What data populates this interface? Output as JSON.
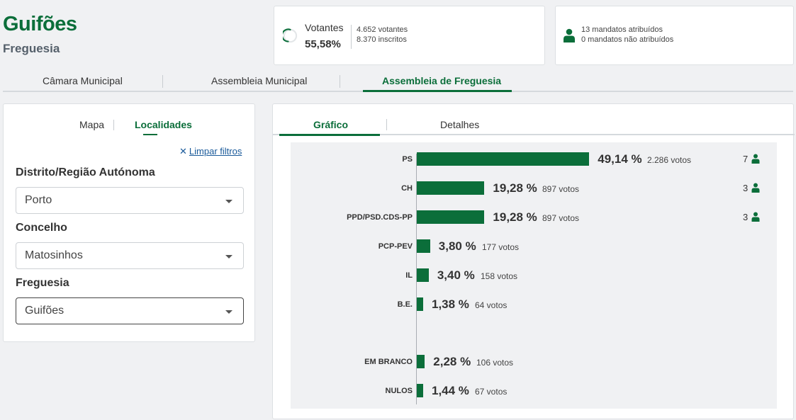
{
  "header": {
    "name": "Guifões",
    "type": "Freguesia"
  },
  "turnout": {
    "label": "Votantes",
    "value": "55,58%",
    "voters": "4.652 votantes",
    "registered": "8.370 inscritos"
  },
  "mandates": {
    "assigned": "13 mandatos atribuídos",
    "unassigned": "0 mandatos não atribuídos"
  },
  "main_tabs": [
    {
      "label": "Câmara Municipal",
      "active": false
    },
    {
      "label": "Assembleia Municipal",
      "active": false
    },
    {
      "label": "Assembleia de Freguesia",
      "active": true
    }
  ],
  "left_panel": {
    "tabs": [
      {
        "label": "Mapa",
        "active": false
      },
      {
        "label": "Localidades",
        "active": true
      }
    ],
    "clear_filters": "Limpar filtros",
    "filters": [
      {
        "label": "Distrito/Região Autónoma",
        "value": "Porto"
      },
      {
        "label": "Concelho",
        "value": "Matosinhos"
      },
      {
        "label": "Freguesia",
        "value": "Guifões"
      }
    ]
  },
  "right_panel": {
    "tabs": [
      {
        "label": "Gráfico",
        "active": true
      },
      {
        "label": "Detalhes",
        "active": false
      }
    ]
  },
  "colors": {
    "accent": "#0b6e3a",
    "link": "#1a5a9a"
  },
  "chart_data": {
    "type": "bar",
    "orientation": "horizontal",
    "xlim": [
      0,
      100
    ],
    "rows": [
      {
        "party": "PS",
        "pct": 49.14,
        "pct_label": "49,14 %",
        "votes": "2.286 votos",
        "seats": "7"
      },
      {
        "party": "CH",
        "pct": 19.28,
        "pct_label": "19,28 %",
        "votes": "897 votos",
        "seats": "3"
      },
      {
        "party": "PPD/PSD.CDS-PP",
        "pct": 19.28,
        "pct_label": "19,28 %",
        "votes": "897 votos",
        "seats": "3"
      },
      {
        "party": "PCP-PEV",
        "pct": 3.8,
        "pct_label": "3,80 %",
        "votes": "177 votos",
        "seats": ""
      },
      {
        "party": "IL",
        "pct": 3.4,
        "pct_label": "3,40 %",
        "votes": "158 votos",
        "seats": ""
      },
      {
        "party": "B.E.",
        "pct": 1.38,
        "pct_label": "1,38 %",
        "votes": "64 votos",
        "seats": ""
      },
      {
        "party": "EM BRANCO",
        "pct": 2.28,
        "pct_label": "2,28 %",
        "votes": "106 votos",
        "seats": ""
      },
      {
        "party": "NULOS",
        "pct": 1.44,
        "pct_label": "1,44 %",
        "votes": "67 votos",
        "seats": ""
      }
    ]
  }
}
